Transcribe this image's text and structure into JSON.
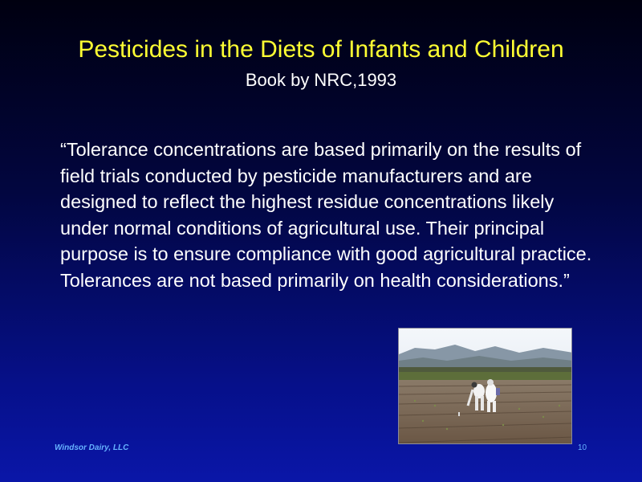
{
  "slide": {
    "title": "Pesticides in the Diets of Infants and Children",
    "subtitle": "Book by NRC,1993",
    "quote": "“Tolerance concentrations are based primarily on the results of field trials conducted by pesticide manufacturers and are designed to reflect the highest residue concentrations likely under normal conditions of agricultural use. Their principal purpose is to ensure compliance with good agricultural practice. Tolerances are not based primarily on health considerations.”",
    "footer_left": "Windsor Dairy, LLC",
    "page_number": "10"
  },
  "colors": {
    "title": "#ffff33",
    "text": "#ffffff",
    "footer": "#66b3ff"
  },
  "photo": {
    "icon": "field-workers-photo"
  }
}
